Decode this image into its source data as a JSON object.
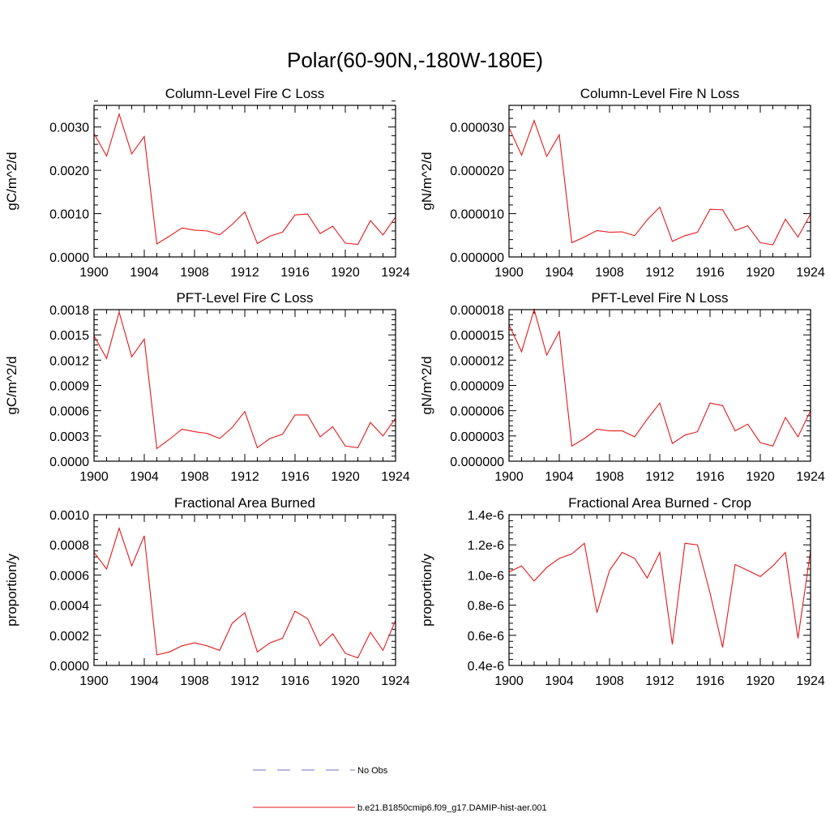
{
  "figure": {
    "title": "Polar(60-90N,-180W-180E)",
    "legend": {
      "placement": "bottom-center",
      "entries": [
        {
          "label": "No Obs",
          "color": "#6f6fbf",
          "dash": true
        },
        {
          "label": "b.e21.B1850cmip6.f09_g17.DAMIP-hist-aer.001",
          "color": "#e41a1c",
          "dash": false
        }
      ]
    }
  },
  "chart_data": [
    {
      "type": "line",
      "title": "Column-Level Fire C Loss",
      "ylabel": "gC/m^2/d",
      "xlabel": "",
      "xlim": [
        1900,
        1924
      ],
      "ylim": [
        0,
        0.0035
      ],
      "xticks": [
        "1900",
        "1904",
        "1908",
        "1912",
        "1916",
        "1920",
        "1924"
      ],
      "yticks": [
        {
          "v": 0,
          "label": "0.0000"
        },
        {
          "v": 0.001,
          "label": "0.0010"
        },
        {
          "v": 0.002,
          "label": "0.0020"
        },
        {
          "v": 0.003,
          "label": "0.0030"
        }
      ],
      "x": [
        1900,
        1901,
        1902,
        1903,
        1904,
        1905,
        1906,
        1907,
        1908,
        1909,
        1910,
        1911,
        1912,
        1913,
        1914,
        1915,
        1916,
        1917,
        1918,
        1919,
        1920,
        1921,
        1922,
        1923,
        1924
      ],
      "series": [
        {
          "color": "#e41a1c",
          "values": [
            0.00285,
            0.00233,
            0.0033,
            0.00238,
            0.00278,
            0.0003,
            0.00048,
            0.00067,
            0.00062,
            0.0006,
            0.00051,
            0.00075,
            0.00104,
            0.00031,
            0.00048,
            0.00057,
            0.00097,
            0.00099,
            0.00054,
            0.00071,
            0.00032,
            0.00029,
            0.00084,
            0.00051,
            0.00092
          ]
        }
      ]
    },
    {
      "type": "line",
      "title": "Column-Level Fire N Loss",
      "ylabel": "gN/m^2/d",
      "xlabel": "",
      "xlim": [
        1900,
        1924
      ],
      "ylim": [
        0,
        3.5e-05
      ],
      "xticks": [
        "1900",
        "1904",
        "1908",
        "1912",
        "1916",
        "1920",
        "1924"
      ],
      "yticks": [
        {
          "v": 0,
          "label": "0.000000"
        },
        {
          "v": 1e-05,
          "label": "0.000010"
        },
        {
          "v": 2e-05,
          "label": "0.000020"
        },
        {
          "v": 3e-05,
          "label": "0.000030"
        }
      ],
      "x": [
        1900,
        1901,
        1902,
        1903,
        1904,
        1905,
        1906,
        1907,
        1908,
        1909,
        1910,
        1911,
        1912,
        1913,
        1914,
        1915,
        1916,
        1917,
        1918,
        1919,
        1920,
        1921,
        1922,
        1923,
        1924
      ],
      "series": [
        {
          "color": "#e41a1c",
          "values": [
            2.98e-05,
            2.35e-05,
            3.15e-05,
            2.32e-05,
            2.82e-05,
            3.3e-06,
            4.6e-06,
            6.1e-06,
            5.7e-06,
            5.8e-06,
            4.9e-06,
            8.6e-06,
            1.15e-05,
            3.6e-06,
            4.9e-06,
            5.7e-06,
            1.1e-05,
            1.09e-05,
            6.1e-06,
            7.2e-06,
            3.3e-06,
            2.8e-06,
            8.7e-06,
            4.6e-06,
            9.9e-06
          ]
        }
      ]
    },
    {
      "type": "line",
      "title": "PFT-Level Fire C Loss",
      "ylabel": "gC/m^2/d",
      "xlabel": "",
      "xlim": [
        1900,
        1924
      ],
      "ylim": [
        0,
        0.0018
      ],
      "xticks": [
        "1900",
        "1904",
        "1908",
        "1912",
        "1916",
        "1920",
        "1924"
      ],
      "yticks": [
        {
          "v": 0,
          "label": "0.0000"
        },
        {
          "v": 0.0003,
          "label": "0.0003"
        },
        {
          "v": 0.0006,
          "label": "0.0006"
        },
        {
          "v": 0.0009,
          "label": "0.0009"
        },
        {
          "v": 0.0012,
          "label": "0.0012"
        },
        {
          "v": 0.0015,
          "label": "0.0015"
        },
        {
          "v": 0.0018,
          "label": "0.0018"
        }
      ],
      "x": [
        1900,
        1901,
        1902,
        1903,
        1904,
        1905,
        1906,
        1907,
        1908,
        1909,
        1910,
        1911,
        1912,
        1913,
        1914,
        1915,
        1916,
        1917,
        1918,
        1919,
        1920,
        1921,
        1922,
        1923,
        1924
      ],
      "series": [
        {
          "color": "#e41a1c",
          "values": [
            0.00149,
            0.00122,
            0.00177,
            0.00124,
            0.00145,
            0.00015,
            0.00026,
            0.00038,
            0.00035,
            0.00033,
            0.00027,
            0.0004,
            0.00059,
            0.00016,
            0.00027,
            0.00032,
            0.00055,
            0.00055,
            0.00029,
            0.00041,
            0.00018,
            0.00016,
            0.00046,
            0.0003,
            0.00051
          ]
        }
      ]
    },
    {
      "type": "line",
      "title": "PFT-Level Fire N Loss",
      "ylabel": "gN/m^2/d",
      "xlabel": "",
      "xlim": [
        1900,
        1924
      ],
      "ylim": [
        0,
        1.8e-05
      ],
      "xticks": [
        "1900",
        "1904",
        "1908",
        "1912",
        "1916",
        "1920",
        "1924"
      ],
      "yticks": [
        {
          "v": 0,
          "label": "0.000000"
        },
        {
          "v": 3e-06,
          "label": "0.000003"
        },
        {
          "v": 6e-06,
          "label": "0.000006"
        },
        {
          "v": 9e-06,
          "label": "0.000009"
        },
        {
          "v": 1.2e-05,
          "label": "0.000012"
        },
        {
          "v": 1.5e-05,
          "label": "0.000015"
        },
        {
          "v": 1.8e-05,
          "label": "0.000018"
        }
      ],
      "x": [
        1900,
        1901,
        1902,
        1903,
        1904,
        1905,
        1906,
        1907,
        1908,
        1909,
        1910,
        1911,
        1912,
        1913,
        1914,
        1915,
        1916,
        1917,
        1918,
        1919,
        1920,
        1921,
        1922,
        1923,
        1924
      ],
      "series": [
        {
          "color": "#e41a1c",
          "values": [
            1.62e-05,
            1.3e-05,
            1.8e-05,
            1.26e-05,
            1.54e-05,
            1.8e-06,
            2.7e-06,
            3.8e-06,
            3.6e-06,
            3.6e-06,
            2.9e-06,
            5e-06,
            6.9e-06,
            2.1e-06,
            3.1e-06,
            3.5e-06,
            6.9e-06,
            6.6e-06,
            3.6e-06,
            4.4e-06,
            2.2e-06,
            1.8e-06,
            5.2e-06,
            2.9e-06,
            6e-06
          ]
        }
      ]
    },
    {
      "type": "line",
      "title": "Fractional Area Burned",
      "ylabel": "proportion/y",
      "xlabel": "",
      "xlim": [
        1900,
        1924
      ],
      "ylim": [
        0,
        0.001
      ],
      "xticks": [
        "1900",
        "1904",
        "1908",
        "1912",
        "1916",
        "1920",
        "1924"
      ],
      "yticks": [
        {
          "v": 0,
          "label": "0.0000"
        },
        {
          "v": 0.0002,
          "label": "0.0002"
        },
        {
          "v": 0.0004,
          "label": "0.0004"
        },
        {
          "v": 0.0006,
          "label": "0.0006"
        },
        {
          "v": 0.0008,
          "label": "0.0008"
        },
        {
          "v": 0.001,
          "label": "0.0010"
        }
      ],
      "x": [
        1900,
        1901,
        1902,
        1903,
        1904,
        1905,
        1906,
        1907,
        1908,
        1909,
        1910,
        1911,
        1912,
        1913,
        1914,
        1915,
        1916,
        1917,
        1918,
        1919,
        1920,
        1921,
        1922,
        1923,
        1924
      ],
      "series": [
        {
          "color": "#e41a1c",
          "values": [
            0.00075,
            0.00064,
            0.00091,
            0.00066,
            0.00086,
            7e-05,
            9e-05,
            0.00013,
            0.00015,
            0.00013,
            0.0001,
            0.00028,
            0.00035,
            9e-05,
            0.00015,
            0.00018,
            0.00036,
            0.00031,
            0.00013,
            0.00021,
            8e-05,
            5e-05,
            0.00022,
            0.0001,
            0.0003
          ]
        }
      ]
    },
    {
      "type": "line",
      "title": "Fractional Area Burned - Crop",
      "ylabel": "proportion/y",
      "xlabel": "",
      "xlim": [
        1900,
        1924
      ],
      "ylim": [
        4e-07,
        1.4e-06
      ],
      "xticks": [
        "1900",
        "1904",
        "1908",
        "1912",
        "1916",
        "1920",
        "1924"
      ],
      "yticks": [
        {
          "v": 4e-07,
          "label": "0.4e-6"
        },
        {
          "v": 6e-07,
          "label": "0.6e-6"
        },
        {
          "v": 8e-07,
          "label": "0.8e-6"
        },
        {
          "v": 1e-06,
          "label": "1.0e-6"
        },
        {
          "v": 1.2e-06,
          "label": "1.2e-6"
        },
        {
          "v": 1.4e-06,
          "label": "1.4e-6"
        }
      ],
      "x": [
        1900,
        1901,
        1902,
        1903,
        1904,
        1905,
        1906,
        1907,
        1908,
        1909,
        1910,
        1911,
        1912,
        1913,
        1914,
        1915,
        1916,
        1917,
        1918,
        1919,
        1920,
        1921,
        1922,
        1923,
        1924
      ],
      "series": [
        {
          "color": "#e41a1c",
          "values": [
            1.02e-06,
            1.06e-06,
            9.6e-07,
            1.05e-06,
            1.11e-06,
            1.14e-06,
            1.21e-06,
            7.5e-07,
            1.03e-06,
            1.15e-06,
            1.11e-06,
            9.8e-07,
            1.15e-06,
            5.4e-07,
            1.21e-06,
            1.2e-06,
            8.8e-07,
            5.2e-07,
            1.07e-06,
            1.03e-06,
            9.9e-07,
            1.06e-06,
            1.15e-06,
            5.8e-07,
            1.16e-06
          ]
        }
      ]
    }
  ]
}
